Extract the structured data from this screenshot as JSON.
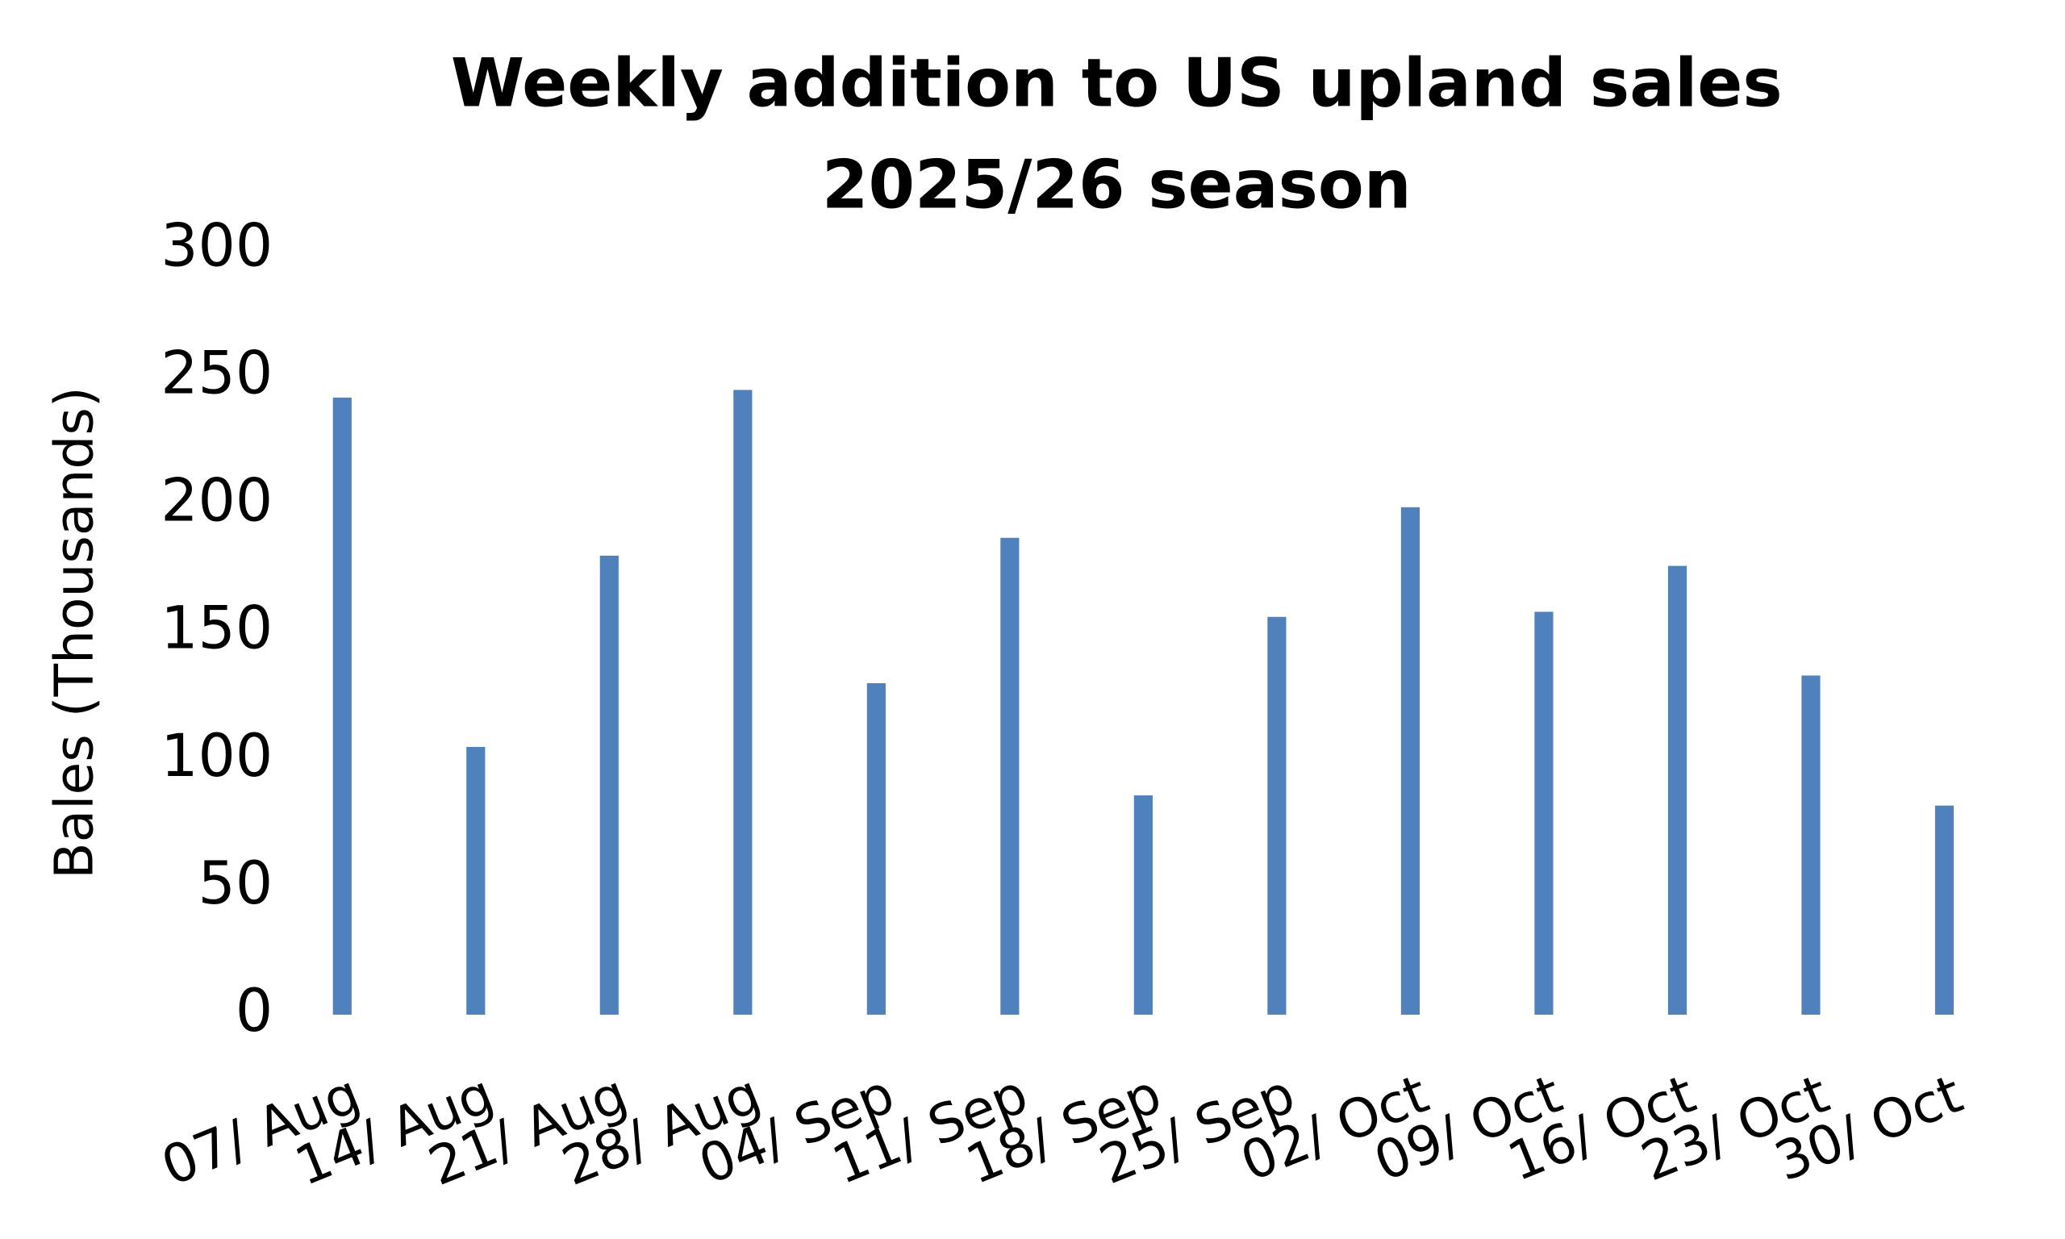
{
  "chart_data": {
    "type": "bar",
    "title": "Weekly addition to US upland sales",
    "subtitle": "2025/26 season",
    "y_label": "Bales (Thousands)",
    "categories": [
      "07/ Aug",
      "14/ Aug",
      "21/ Aug",
      "28/ Aug",
      "04/ Sep",
      "11/ Sep",
      "18/ Sep",
      "25/ Sep",
      "02/ Oct",
      "09/ Oct",
      "16/ Oct",
      "23/ Oct",
      "30/ Oct"
    ],
    "values": [
      242,
      105,
      180,
      245,
      130,
      187,
      86,
      156,
      199,
      158,
      176,
      133,
      82
    ],
    "color": "#4f81bd",
    "ylim": [
      0,
      300
    ],
    "yticks": [
      0,
      50,
      100,
      150,
      200,
      250,
      300
    ],
    "grid": false
  }
}
